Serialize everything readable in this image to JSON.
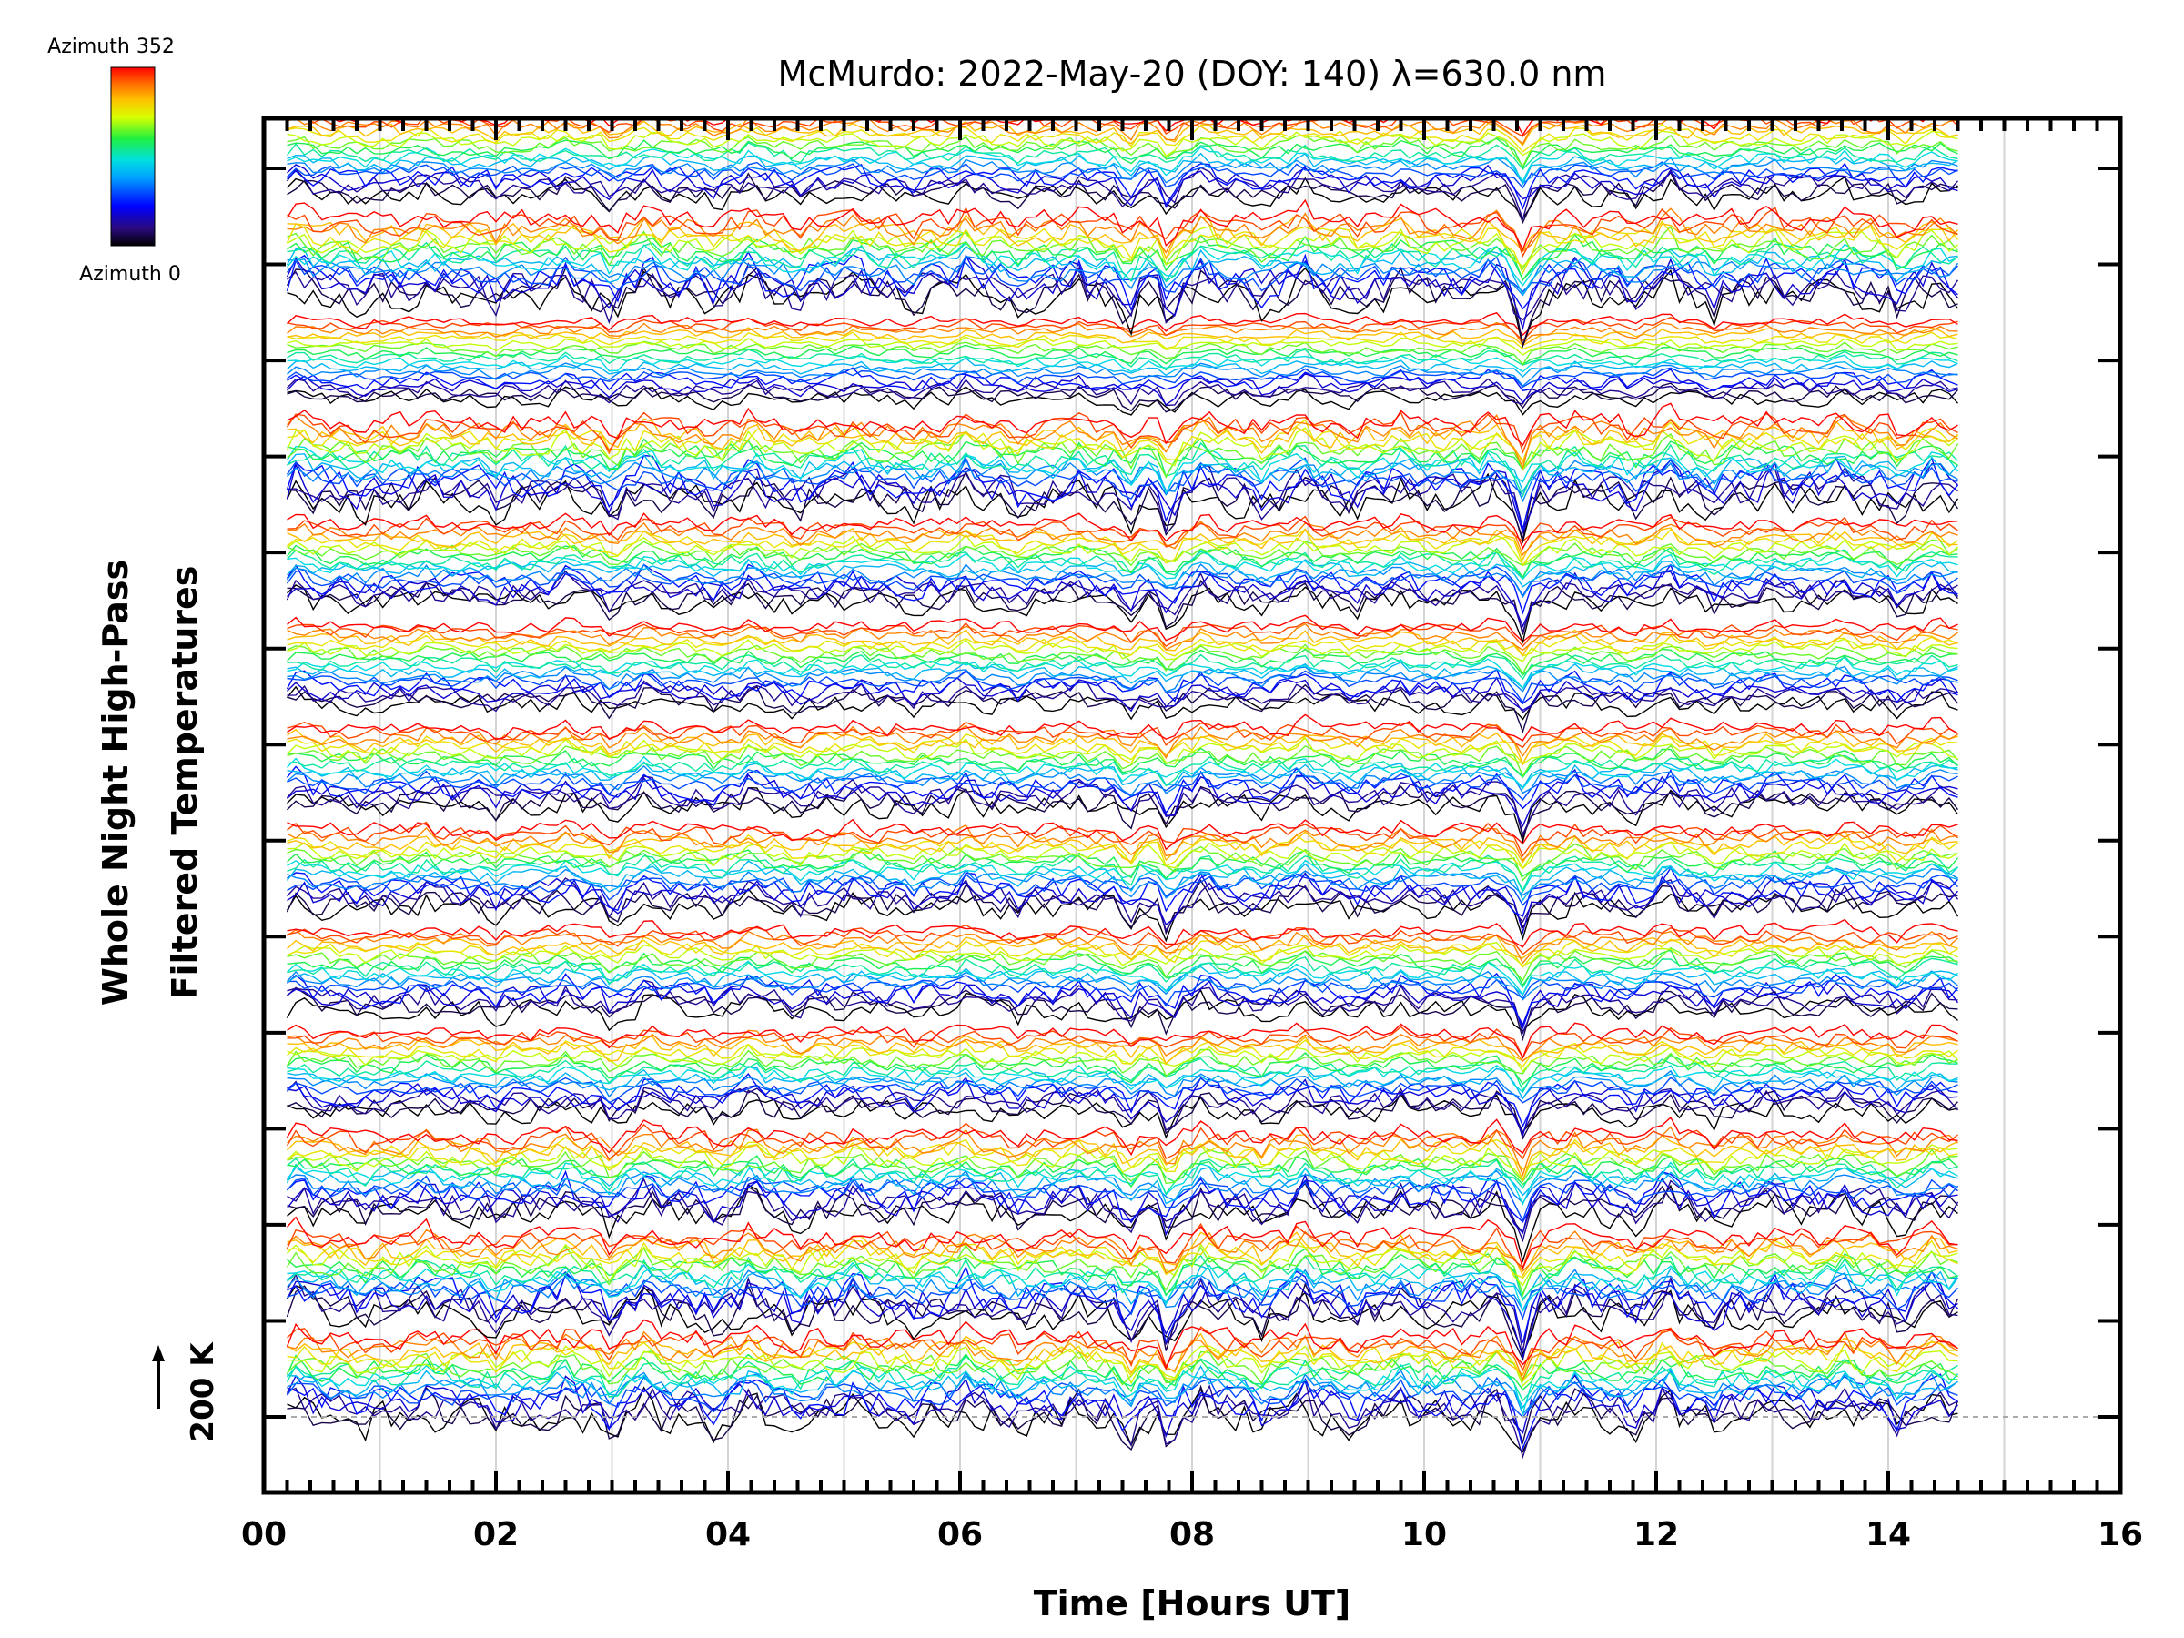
{
  "chart_data": {
    "type": "line",
    "title": "McMurdo: 2022-May-20 (DOY: 140) λ=630.0 nm",
    "xlabel": "Time [Hours UT]",
    "ylabel_line1": "Whole Night High-Pass",
    "ylabel_line2": "Filtered Temperatures",
    "xlim": [
      0,
      16
    ],
    "x_tick_labels": [
      "00",
      "02",
      "04",
      "06",
      "08",
      "10",
      "12",
      "14",
      "16"
    ],
    "x_tick_values": [
      0,
      2,
      4,
      6,
      8,
      10,
      12,
      14,
      16
    ],
    "x_vertical_grid_hours": [
      1,
      2,
      3,
      4,
      5,
      6,
      7,
      8,
      9,
      10,
      11,
      12,
      13,
      14,
      15
    ],
    "n_y_ticks": 14,
    "scale_bar_label": "200 K",
    "colorbar": {
      "min_label": "Azimuth 0",
      "max_label": "Azimuth 352",
      "colormap": [
        "#000000",
        "#2a0a80",
        "#0000ff",
        "#00a0ff",
        "#00e0e0",
        "#20f040",
        "#d8ff00",
        "#ffc000",
        "#ff6000",
        "#ff0000"
      ]
    },
    "time_range_hours": [
      0.2,
      14.6
    ],
    "series_summary": {
      "description_count": 13,
      "lines_per_group": 18,
      "azimuth_range_deg": [
        0,
        352
      ]
    },
    "notable_dip_hours": [
      3.0,
      7.8,
      10.85
    ]
  }
}
